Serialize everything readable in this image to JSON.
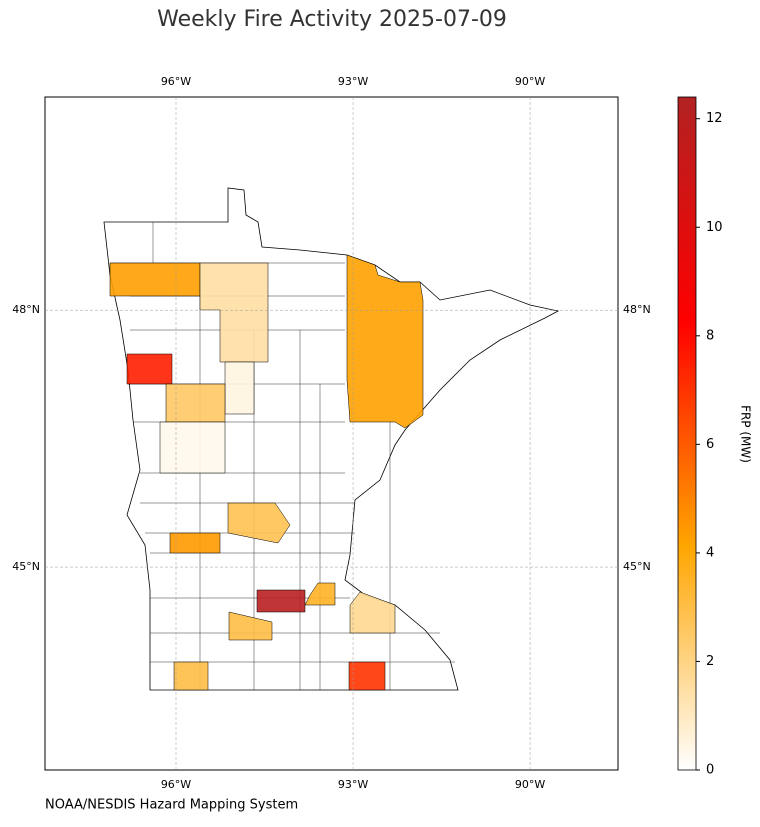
{
  "chart_data": {
    "type": "choropleth",
    "title": "Weekly Fire Activity 2025-07-09",
    "source": "NOAA/NESDIS Hazard Mapping System",
    "xlim": [
      -98.22,
      -88.51
    ],
    "ylim": [
      42.63,
      50.49
    ],
    "xticks": [
      {
        "value": -96,
        "label": "96°W"
      },
      {
        "value": -93,
        "label": "93°W"
      },
      {
        "value": -90,
        "label": "90°W"
      }
    ],
    "yticks": [
      {
        "value": 48,
        "label": "48°N"
      },
      {
        "value": 45,
        "label": "45°N"
      }
    ],
    "grid": true,
    "values": [
      4.3,
      1.5,
      0.5,
      7.5,
      2.5,
      0.3,
      4.2,
      2.8,
      4.4,
      12,
      3.5,
      1.8,
      3,
      3,
      7
    ],
    "colorbar": {
      "label": "FRP (MW)",
      "lim": [
        0,
        12.4
      ],
      "ticks": [
        0,
        2,
        4,
        6,
        8,
        10,
        12
      ],
      "colors": [
        "#ffffff",
        "#ffa500",
        "#ff0000",
        "#b22222"
      ]
    }
  }
}
